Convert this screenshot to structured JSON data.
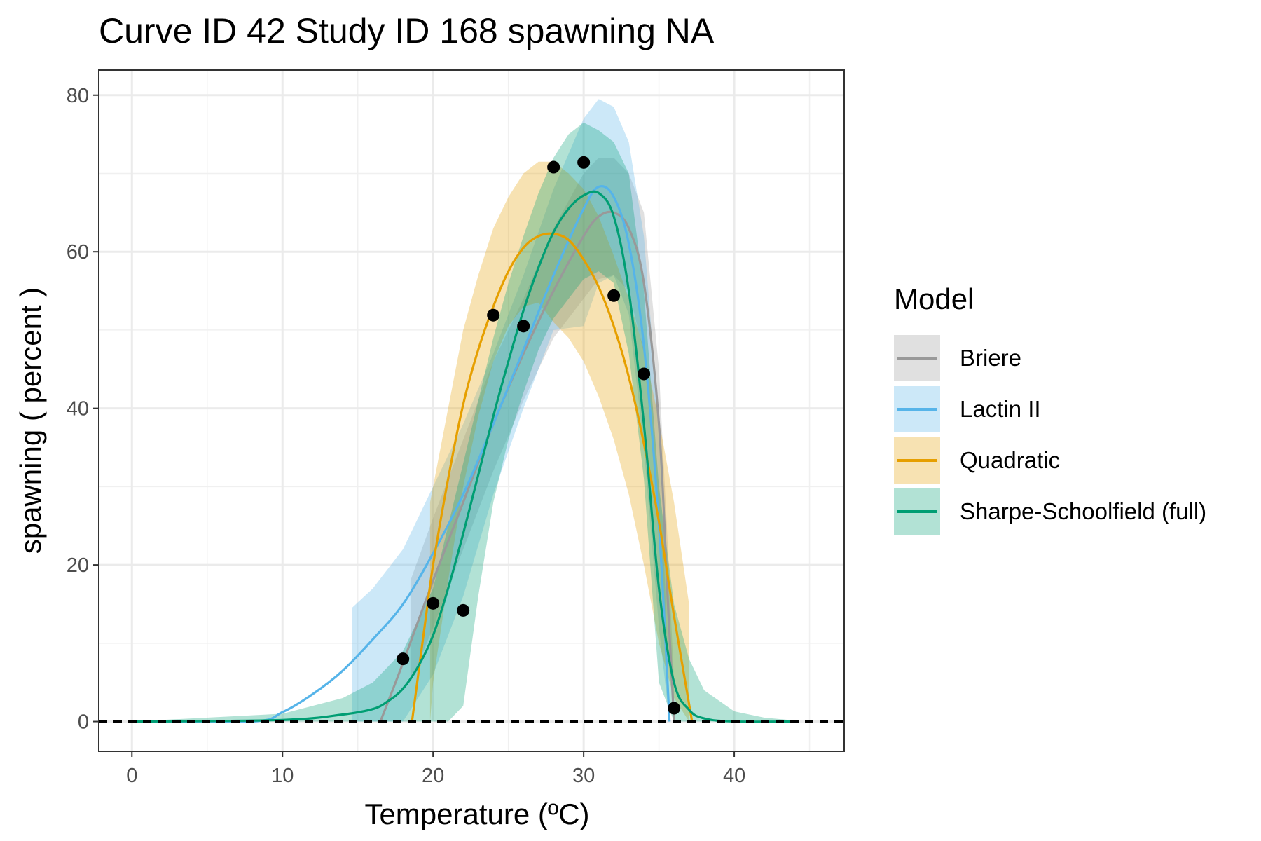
{
  "chart_data": {
    "type": "line",
    "title": "Curve ID 42 Study ID 168 spawning NA",
    "xlabel": "Temperature (ºC)",
    "ylabel": "spawning ( percent )",
    "xlim": [
      -2.2,
      47.3
    ],
    "ylim": [
      -3.8,
      83.2
    ],
    "xticks": [
      0,
      10,
      20,
      30,
      40
    ],
    "yticks": [
      0,
      20,
      40,
      60,
      80
    ],
    "grid": true,
    "hline": {
      "y": 0,
      "style": "dashed",
      "color": "#000000"
    },
    "legend": {
      "title": "Model",
      "placement": "right",
      "entries": [
        "Briere",
        "Lactin II",
        "Quadratic",
        "Sharpe-Schoolfield (full)"
      ]
    },
    "points": [
      {
        "x": 18,
        "y": 8.0
      },
      {
        "x": 20,
        "y": 15.1
      },
      {
        "x": 22,
        "y": 14.2
      },
      {
        "x": 24,
        "y": 51.9
      },
      {
        "x": 26,
        "y": 50.5
      },
      {
        "x": 28,
        "y": 70.8
      },
      {
        "x": 30,
        "y": 71.4
      },
      {
        "x": 32,
        "y": 54.4
      },
      {
        "x": 34,
        "y": 44.4
      },
      {
        "x": 36,
        "y": 1.7
      }
    ],
    "series": [
      {
        "name": "Briere",
        "color": "#999999",
        "x": [
          16.5,
          18,
          20,
          22,
          24,
          26,
          28,
          30,
          31,
          32,
          33,
          34,
          35,
          35.6,
          36
        ],
        "y": [
          0,
          7.5,
          18,
          28,
          38,
          47,
          55,
          62,
          64.5,
          65,
          63,
          56,
          38,
          15,
          0
        ],
        "band_x": [
          18.5,
          20,
          22,
          24,
          26,
          28,
          30,
          31,
          32,
          33,
          34,
          35,
          35.6,
          36
        ],
        "band_lo": [
          5,
          12,
          22,
          32,
          41,
          49,
          54,
          56.5,
          57,
          55,
          47,
          25,
          8,
          2
        ],
        "band_hi": [
          18,
          26,
          36,
          46,
          54,
          63,
          70,
          72,
          72,
          70,
          65,
          45,
          22,
          5
        ]
      },
      {
        "name": "Lactin II",
        "color": "#56B4E9",
        "x": [
          0,
          8,
          10,
          12,
          14,
          16,
          18,
          20,
          22,
          24,
          26,
          28,
          30,
          31,
          32,
          33,
          34,
          35,
          35.7
        ],
        "y": [
          0,
          0,
          1.2,
          3.5,
          6.5,
          10.5,
          15,
          21.5,
          29,
          38,
          47.5,
          57,
          65.5,
          68.3,
          67,
          61,
          48,
          25,
          0
        ],
        "band_x": [
          14.6,
          16,
          18,
          20,
          22,
          24,
          26,
          28,
          30,
          31,
          32,
          33,
          34,
          35,
          35.7
        ],
        "band_lo": [
          0,
          0,
          0,
          6,
          16,
          29,
          40,
          50,
          50.5,
          56,
          57,
          52,
          35,
          12,
          0
        ],
        "band_hi": [
          14.5,
          17,
          22,
          30,
          38,
          47,
          57,
          68,
          77,
          79.5,
          78.5,
          74,
          62,
          38,
          2
        ]
      },
      {
        "name": "Quadratic",
        "color": "#E69F00",
        "x": [
          18.6,
          19.5,
          20,
          21,
          22,
          23,
          24,
          25,
          26,
          27,
          28,
          29,
          30,
          31,
          32,
          33,
          34,
          35,
          36,
          37.2
        ],
        "y": [
          0,
          13,
          20,
          31,
          40.5,
          47.5,
          53,
          57.5,
          60.5,
          62,
          62.3,
          61.5,
          59,
          55.5,
          50.5,
          44,
          35.5,
          25.5,
          13.5,
          0
        ],
        "band_x": [
          19.8,
          20,
          21,
          22,
          23,
          24,
          25,
          26,
          27,
          28,
          29,
          30,
          31,
          32,
          33,
          34,
          35,
          36,
          37
        ],
        "band_lo": [
          0,
          5,
          18,
          30,
          39,
          46,
          50.5,
          53,
          53.5,
          51,
          49,
          46,
          41.5,
          36,
          29,
          20,
          10,
          3,
          0
        ],
        "band_hi": [
          28,
          30,
          40,
          50,
          57,
          63,
          67,
          70,
          71.5,
          71.5,
          70,
          68,
          64.5,
          59.5,
          54,
          47.5,
          38.5,
          28,
          15
        ]
      },
      {
        "name": "Sharpe-Schoolfield (full)",
        "color": "#009E73",
        "x": [
          0,
          10,
          14,
          16,
          17,
          18,
          19,
          20,
          21,
          22,
          23,
          24,
          25,
          26,
          27,
          28,
          29,
          30,
          31,
          32,
          33,
          34,
          35,
          36,
          37,
          38,
          40,
          44.2
        ],
        "y": [
          0,
          0.2,
          0.9,
          1.6,
          2.6,
          4.2,
          7,
          11,
          17,
          24,
          31.5,
          39,
          46,
          52.5,
          58,
          62.5,
          65.5,
          67.2,
          67.5,
          64.5,
          55,
          38,
          17,
          5,
          1.5,
          0.4,
          0,
          0
        ],
        "band_x": [
          0,
          10,
          14,
          16,
          18,
          20,
          21,
          22,
          23,
          24,
          25,
          26,
          27,
          28,
          29,
          30,
          31,
          32,
          33,
          34,
          35,
          36,
          37,
          38,
          40,
          42,
          44.2
        ],
        "band_lo": [
          0,
          0,
          0,
          0,
          0,
          0,
          0,
          2,
          16,
          28,
          36,
          42,
          47.5,
          51.5,
          54,
          56.5,
          57.5,
          56,
          47,
          31,
          5,
          0,
          0,
          0,
          0,
          0,
          0
        ],
        "band_hi": [
          0,
          1,
          3,
          5,
          9,
          17,
          25,
          33,
          41,
          49,
          56,
          62,
          67.5,
          72,
          75,
          76.5,
          75.5,
          74,
          70,
          55,
          30,
          15,
          8,
          4,
          1.3,
          0.5,
          0.1
        ]
      }
    ]
  }
}
